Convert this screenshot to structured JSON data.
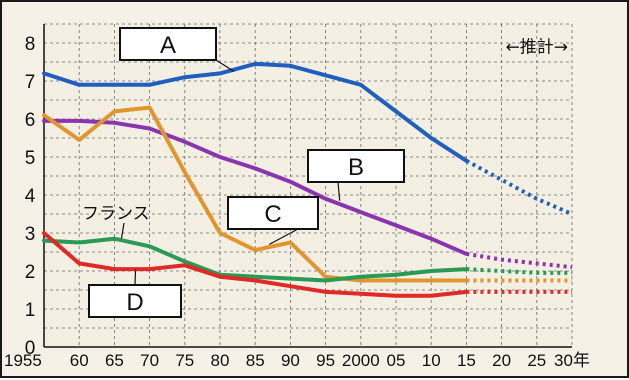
{
  "chart_data": {
    "type": "line",
    "title": "",
    "xlabel": "",
    "ylabel": "",
    "x": [
      1955,
      1960,
      1965,
      1970,
      1975,
      1980,
      1985,
      1990,
      1995,
      2000,
      2005,
      2010,
      2015,
      2020,
      2025,
      2030
    ],
    "x_tick_labels": [
      "1955",
      "60",
      "65",
      "70",
      "75",
      "80",
      "85",
      "90",
      "95",
      "2000",
      "05",
      "10",
      "15",
      "20",
      "25",
      "30年"
    ],
    "y_ticks": [
      "0",
      "1",
      "2",
      "3",
      "4",
      "5",
      "6",
      "7",
      "8"
    ],
    "ylim": [
      0,
      8.5
    ],
    "xlim": [
      1955,
      2030
    ],
    "grid": true,
    "projection_start": 2015,
    "projection_label": "←推計→",
    "series": [
      {
        "name": "A",
        "color": "#1f5fc0",
        "values": [
          7.2,
          6.9,
          6.9,
          6.9,
          7.1,
          7.2,
          7.45,
          7.4,
          7.15,
          6.9,
          6.2,
          5.5,
          4.9,
          4.4,
          3.9,
          3.5
        ]
      },
      {
        "name": "B",
        "color": "#8a35b0",
        "values": [
          5.95,
          5.95,
          5.9,
          5.75,
          5.4,
          5.0,
          4.7,
          4.35,
          3.9,
          3.55,
          3.2,
          2.85,
          2.45,
          2.3,
          2.2,
          2.1
        ]
      },
      {
        "name": "C",
        "color": "#e0952e",
        "values": [
          6.1,
          5.45,
          6.2,
          6.3,
          4.6,
          3.0,
          2.55,
          2.75,
          1.85,
          1.75,
          1.75,
          1.75,
          1.75,
          1.75,
          1.75,
          1.75
        ]
      },
      {
        "name": "フランス",
        "color": "#2a9a55",
        "values": [
          2.8,
          2.75,
          2.85,
          2.65,
          2.25,
          1.9,
          1.85,
          1.8,
          1.75,
          1.85,
          1.9,
          2.0,
          2.05,
          2.0,
          1.95,
          1.95
        ]
      },
      {
        "name": "D",
        "color": "#e02a26",
        "values": [
          3.0,
          2.2,
          2.05,
          2.05,
          2.15,
          1.85,
          1.75,
          1.6,
          1.45,
          1.4,
          1.35,
          1.35,
          1.45,
          1.45,
          1.45,
          1.45
        ]
      }
    ]
  }
}
